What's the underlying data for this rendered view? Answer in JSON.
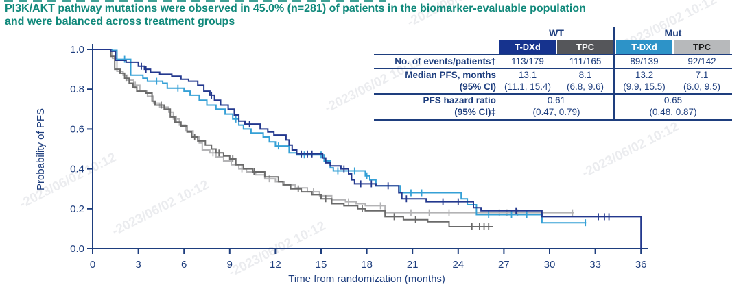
{
  "title": {
    "line1": "PI3K/AKT pathway mutations were observed in 45.0% (n=281) of patients in the biomarker-evaluable population",
    "line2": "and were balanced across treatment groups",
    "color": "#11897b"
  },
  "watermark": {
    "text": "-2023/06/02 10:12"
  },
  "colors": {
    "axis_text": "#1e3e7e",
    "table_rule": "#1e3e7e",
    "tdxd_wt": "#23388e",
    "tpc_wt": "#6a6a6a",
    "tdxd_mut": "#35a0d6",
    "tpc_mut": "#b3b3b5"
  },
  "summary_table": {
    "group_headers": [
      "WT",
      "Mut"
    ],
    "columns": [
      {
        "label": "T-DXd",
        "bg": "#16338e",
        "fg": "#ffffff"
      },
      {
        "label": "TPC",
        "bg": "#55565a",
        "fg": "#ffffff"
      },
      {
        "label": "T-DXd",
        "bg": "#2d93c8",
        "fg": "#ffffff"
      },
      {
        "label": "TPC",
        "bg": "#b7b9bb",
        "fg": "#1a1a1a"
      }
    ],
    "rows": [
      {
        "label_lines": [
          "No. of events/patients†"
        ],
        "cells": [
          [
            "113/179"
          ],
          [
            "111/165"
          ],
          [
            "89/139"
          ],
          [
            "92/142"
          ]
        ],
        "span": false
      },
      {
        "label_lines": [
          "Median PFS, months",
          "(95% CI)"
        ],
        "cells": [
          [
            "13.1",
            "(11.1, 15.4)"
          ],
          [
            "8.1",
            "(6.8, 9.6)"
          ],
          [
            "13.2",
            "(9.9, 15.5)"
          ],
          [
            "7.1",
            "(6.0, 9.5)"
          ]
        ],
        "span": false
      },
      {
        "label_lines": [
          "PFS hazard ratio",
          "(95% CI)‡"
        ],
        "cells": [
          [
            "0.61",
            "(0.47, 0.79)"
          ],
          [
            "0.65",
            "(0.48, 0.87)"
          ]
        ],
        "span": true
      }
    ]
  },
  "chart_data": {
    "type": "line",
    "subtype": "kaplan-meier-step",
    "title": "",
    "xlabel": "Time from randomization (months)",
    "ylabel": "Probability of PFS",
    "xlim": [
      0,
      36
    ],
    "xticks": [
      0,
      3,
      6,
      9,
      12,
      15,
      18,
      21,
      24,
      27,
      30,
      33,
      36
    ],
    "ylim": [
      0,
      1.0
    ],
    "ytick_labels": [
      "0.0",
      "0.2",
      "0.4",
      "0.6",
      "0.8",
      "1.0"
    ],
    "yticks": [
      0,
      0.2,
      0.4,
      0.6,
      0.8,
      1.0
    ],
    "grid": false,
    "legend_position": "none (series colors keyed to table header chips)",
    "series": [
      {
        "name": "TPC (Mut)",
        "color": "#b3b3b5",
        "median_pfs_months": 7.1,
        "end_t": 31.6,
        "drops_to_zero": false,
        "steps": [
          [
            0,
            1
          ],
          [
            1.3,
            0.955
          ],
          [
            1.6,
            0.89
          ],
          [
            2.0,
            0.87
          ],
          [
            2.3,
            0.845
          ],
          [
            2.7,
            0.82
          ],
          [
            3.1,
            0.79
          ],
          [
            3.6,
            0.765
          ],
          [
            4.0,
            0.73
          ],
          [
            4.4,
            0.71
          ],
          [
            5.0,
            0.685
          ],
          [
            5.3,
            0.65
          ],
          [
            5.7,
            0.62
          ],
          [
            6.1,
            0.59
          ],
          [
            6.6,
            0.56
          ],
          [
            7.0,
            0.53
          ],
          [
            7.2,
            0.495
          ],
          [
            7.7,
            0.48
          ],
          [
            8.1,
            0.46
          ],
          [
            8.6,
            0.44
          ],
          [
            9.1,
            0.42
          ],
          [
            9.6,
            0.4
          ],
          [
            10.1,
            0.385
          ],
          [
            10.7,
            0.37
          ],
          [
            11.3,
            0.35
          ],
          [
            12.0,
            0.335
          ],
          [
            12.6,
            0.32
          ],
          [
            13.3,
            0.305
          ],
          [
            14.1,
            0.285
          ],
          [
            14.9,
            0.265
          ],
          [
            15.7,
            0.245
          ],
          [
            16.6,
            0.235
          ],
          [
            17.3,
            0.225
          ],
          [
            17.9,
            0.215
          ],
          [
            19.2,
            0.18
          ]
        ],
        "censor_marks": [
          2.8,
          5.5,
          7.9,
          9.8,
          11.6,
          14.5,
          16.8,
          18.9,
          20.9,
          22.1,
          23.4,
          26.7,
          27.2,
          27.9,
          31.5
        ]
      },
      {
        "name": "TPC (WT)",
        "color": "#6a6a6a",
        "median_pfs_months": 8.1,
        "end_t": 26.3,
        "drops_to_zero": false,
        "steps": [
          [
            0,
            1
          ],
          [
            1.2,
            0.965
          ],
          [
            1.45,
            0.9
          ],
          [
            1.8,
            0.88
          ],
          [
            2.1,
            0.855
          ],
          [
            2.4,
            0.83
          ],
          [
            2.65,
            0.81
          ],
          [
            2.9,
            0.79
          ],
          [
            3.5,
            0.78
          ],
          [
            3.9,
            0.74
          ],
          [
            4.1,
            0.72
          ],
          [
            4.7,
            0.7
          ],
          [
            5.1,
            0.66
          ],
          [
            5.4,
            0.635
          ],
          [
            5.8,
            0.615
          ],
          [
            6.2,
            0.585
          ],
          [
            6.5,
            0.56
          ],
          [
            6.9,
            0.54
          ],
          [
            7.4,
            0.52
          ],
          [
            7.8,
            0.5
          ],
          [
            8.1,
            0.48
          ],
          [
            8.6,
            0.465
          ],
          [
            9.0,
            0.45
          ],
          [
            9.4,
            0.42
          ],
          [
            9.9,
            0.4
          ],
          [
            10.5,
            0.385
          ],
          [
            11.3,
            0.36
          ],
          [
            12.2,
            0.335
          ],
          [
            12.5,
            0.32
          ],
          [
            13.0,
            0.3
          ],
          [
            13.7,
            0.285
          ],
          [
            14.4,
            0.27
          ],
          [
            15.0,
            0.25
          ],
          [
            15.7,
            0.225
          ],
          [
            16.5,
            0.215
          ],
          [
            17.4,
            0.2
          ],
          [
            17.9,
            0.19
          ],
          [
            19.2,
            0.16
          ],
          [
            20.4,
            0.145
          ],
          [
            22.0,
            0.135
          ],
          [
            23.4,
            0.11
          ]
        ],
        "censor_marks": [
          2.2,
          4.5,
          6.7,
          8.3,
          9.2,
          10.6,
          13.5,
          15.3,
          17.7,
          19.8,
          21.2,
          24.9,
          25.4,
          25.7,
          26.0
        ]
      },
      {
        "name": "T-DXd (Mut)",
        "color": "#35a0d6",
        "median_pfs_months": 13.2,
        "end_t": 32.4,
        "drops_to_zero": false,
        "steps": [
          [
            0,
            1
          ],
          [
            1.3,
            0.995
          ],
          [
            1.6,
            0.95
          ],
          [
            2.5,
            0.87
          ],
          [
            3.3,
            0.855
          ],
          [
            3.6,
            0.84
          ],
          [
            4.6,
            0.83
          ],
          [
            4.9,
            0.805
          ],
          [
            6.0,
            0.79
          ],
          [
            6.4,
            0.77
          ],
          [
            7.0,
            0.745
          ],
          [
            7.5,
            0.72
          ],
          [
            8.1,
            0.7
          ],
          [
            8.7,
            0.675
          ],
          [
            9.2,
            0.65
          ],
          [
            9.6,
            0.62
          ],
          [
            9.9,
            0.6
          ],
          [
            10.4,
            0.58
          ],
          [
            11.2,
            0.56
          ],
          [
            11.6,
            0.535
          ],
          [
            12.0,
            0.515
          ],
          [
            12.9,
            0.48
          ],
          [
            13.4,
            0.47
          ],
          [
            15.2,
            0.44
          ],
          [
            15.6,
            0.405
          ],
          [
            15.8,
            0.39
          ],
          [
            17.9,
            0.365
          ],
          [
            18.2,
            0.345
          ],
          [
            18.6,
            0.315
          ],
          [
            20.2,
            0.28
          ],
          [
            24.2,
            0.25
          ],
          [
            24.6,
            0.22
          ],
          [
            25.2,
            0.17
          ],
          [
            29.5,
            0.13
          ]
        ],
        "censor_marks": [
          2.1,
          4.2,
          5.6,
          9.4,
          12.2,
          13.9,
          15.0,
          16.1,
          17.2,
          18.0,
          20.9,
          21.6,
          26.0,
          27.5,
          28.5,
          32.35
        ]
      },
      {
        "name": "T-DXd (WT)",
        "color": "#23388e",
        "median_pfs_months": 13.1,
        "end_t": 36,
        "drops_to_zero": true,
        "steps": [
          [
            0,
            1
          ],
          [
            1.2,
            0.99
          ],
          [
            1.5,
            0.945
          ],
          [
            2.2,
            0.935
          ],
          [
            3.0,
            0.915
          ],
          [
            3.4,
            0.9
          ],
          [
            3.8,
            0.885
          ],
          [
            4.4,
            0.875
          ],
          [
            5.2,
            0.865
          ],
          [
            5.8,
            0.85
          ],
          [
            6.3,
            0.84
          ],
          [
            6.9,
            0.82
          ],
          [
            7.3,
            0.79
          ],
          [
            7.7,
            0.77
          ],
          [
            8.0,
            0.745
          ],
          [
            8.4,
            0.72
          ],
          [
            8.9,
            0.7
          ],
          [
            9.3,
            0.67
          ],
          [
            9.6,
            0.64
          ],
          [
            10.0,
            0.625
          ],
          [
            11.0,
            0.6
          ],
          [
            11.5,
            0.585
          ],
          [
            11.9,
            0.57
          ],
          [
            12.7,
            0.545
          ],
          [
            12.9,
            0.52
          ],
          [
            13.1,
            0.495
          ],
          [
            13.4,
            0.475
          ],
          [
            15.1,
            0.455
          ],
          [
            15.3,
            0.43
          ],
          [
            15.6,
            0.415
          ],
          [
            16.3,
            0.4
          ],
          [
            16.8,
            0.375
          ],
          [
            17.0,
            0.345
          ],
          [
            17.2,
            0.325
          ],
          [
            18.6,
            0.315
          ],
          [
            20.1,
            0.28
          ],
          [
            20.3,
            0.25
          ],
          [
            21.9,
            0.235
          ],
          [
            25.0,
            0.205
          ],
          [
            25.5,
            0.19
          ],
          [
            29.5,
            0.16
          ]
        ],
        "censor_marks": [
          3.2,
          3.5,
          7.8,
          10.3,
          13.7,
          14.1,
          14.4,
          16.5,
          17.6,
          18.3,
          19.4,
          20.6,
          23.0,
          24.0,
          27.8,
          33.2,
          33.6,
          33.9
        ]
      }
    ]
  }
}
